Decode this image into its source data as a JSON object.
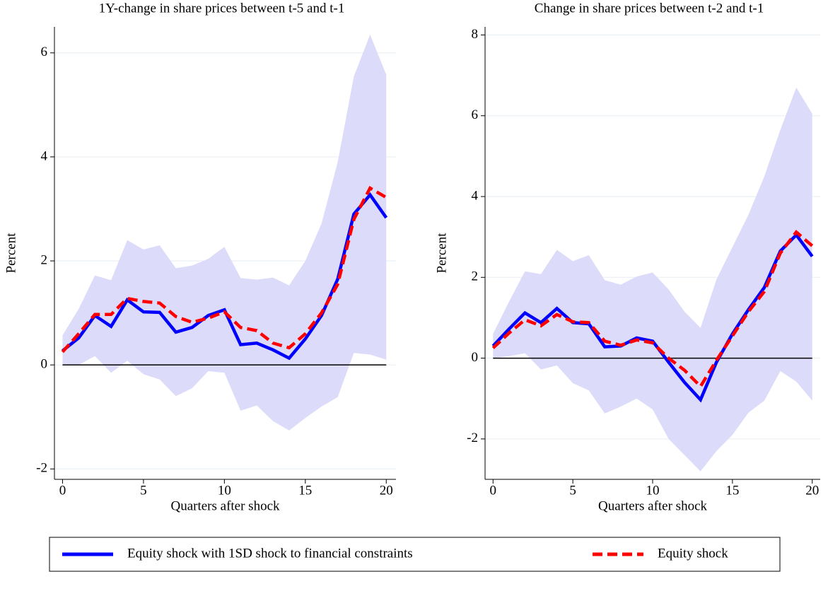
{
  "chart_data": [
    {
      "type": "line",
      "title": "1Y-change in share prices between t-5 and t-1",
      "xlabel": "Quarters after shock",
      "ylabel": "Percent",
      "x": [
        0,
        1,
        2,
        3,
        4,
        5,
        6,
        7,
        8,
        9,
        10,
        11,
        12,
        13,
        14,
        15,
        16,
        17,
        18,
        19,
        20
      ],
      "xlim": [
        -0.5,
        20.6
      ],
      "xticks": [
        0,
        5,
        10,
        15,
        20
      ],
      "ylim": [
        -2.2,
        6.5
      ],
      "yticks": [
        -2,
        0,
        2,
        4,
        6
      ],
      "grid": true,
      "reference_line": 0,
      "band": {
        "color": "#dcdcfa",
        "upper": [
          0.57,
          1.08,
          1.72,
          1.63,
          2.4,
          2.22,
          2.3,
          1.86,
          1.91,
          2.04,
          2.27,
          1.67,
          1.64,
          1.68,
          1.53,
          2.0,
          2.72,
          3.9,
          5.55,
          6.35,
          5.58
        ],
        "lower": [
          0.0,
          0.0,
          0.17,
          -0.15,
          0.08,
          -0.18,
          -0.28,
          -0.6,
          -0.45,
          -0.12,
          -0.15,
          -0.88,
          -0.78,
          -1.08,
          -1.26,
          -1.02,
          -0.8,
          -0.62,
          0.23,
          0.2,
          0.1
        ]
      },
      "series": [
        {
          "name": "Equity shock with 1SD shock to financial constraints",
          "color": "#0000ff",
          "dashed": false,
          "values": [
            0.27,
            0.52,
            0.95,
            0.74,
            1.25,
            1.02,
            1.01,
            0.63,
            0.72,
            0.95,
            1.06,
            0.39,
            0.42,
            0.29,
            0.13,
            0.5,
            0.95,
            1.65,
            2.9,
            3.27,
            2.83
          ]
        },
        {
          "name": "Equity shock",
          "color": "#ff0000",
          "dashed": true,
          "values": [
            0.25,
            0.6,
            0.97,
            0.97,
            1.28,
            1.22,
            1.19,
            0.93,
            0.82,
            0.9,
            1.02,
            0.72,
            0.66,
            0.42,
            0.33,
            0.6,
            1.0,
            1.55,
            2.8,
            3.4,
            3.22
          ]
        }
      ]
    },
    {
      "type": "line",
      "title": "Change in share prices between t-2 and t-1",
      "xlabel": "Quarters after shock",
      "ylabel": "Percent",
      "x": [
        0,
        1,
        2,
        3,
        4,
        5,
        6,
        7,
        8,
        9,
        10,
        11,
        12,
        13,
        14,
        15,
        16,
        17,
        18,
        19,
        20
      ],
      "xlim": [
        -0.5,
        20.5
      ],
      "xticks": [
        0,
        5,
        10,
        15,
        20
      ],
      "ylim": [
        -3.0,
        8.2
      ],
      "yticks": [
        -2,
        0,
        2,
        4,
        6,
        8
      ],
      "grid": true,
      "reference_line": 0,
      "band": {
        "color": "#dcdcfa",
        "upper": [
          0.6,
          1.4,
          2.15,
          2.08,
          2.68,
          2.4,
          2.55,
          1.93,
          1.82,
          2.02,
          2.12,
          1.7,
          1.15,
          0.75,
          1.95,
          2.75,
          3.55,
          4.5,
          5.65,
          6.7,
          6.05
        ],
        "lower": [
          0.0,
          0.05,
          0.12,
          -0.28,
          -0.18,
          -0.62,
          -0.8,
          -1.37,
          -1.2,
          -1.0,
          -1.27,
          -2.0,
          -2.4,
          -2.8,
          -2.3,
          -1.9,
          -1.35,
          -1.05,
          -0.32,
          -0.58,
          -1.05
        ]
      },
      "series": [
        {
          "name": "Equity shock with 1SD shock to financial constraints",
          "color": "#0000ff",
          "dashed": false,
          "values": [
            0.3,
            0.72,
            1.12,
            0.88,
            1.23,
            0.88,
            0.85,
            0.28,
            0.3,
            0.5,
            0.42,
            -0.1,
            -0.6,
            -1.03,
            -0.1,
            0.6,
            1.2,
            1.75,
            2.65,
            3.05,
            2.52
          ]
        },
        {
          "name": "Equity shock",
          "color": "#ff0000",
          "dashed": true,
          "values": [
            0.25,
            0.62,
            0.95,
            0.8,
            1.08,
            0.9,
            0.88,
            0.42,
            0.32,
            0.45,
            0.38,
            0.0,
            -0.3,
            -0.7,
            -0.05,
            0.55,
            1.15,
            1.65,
            2.6,
            3.12,
            2.78
          ]
        }
      ]
    }
  ]
}
